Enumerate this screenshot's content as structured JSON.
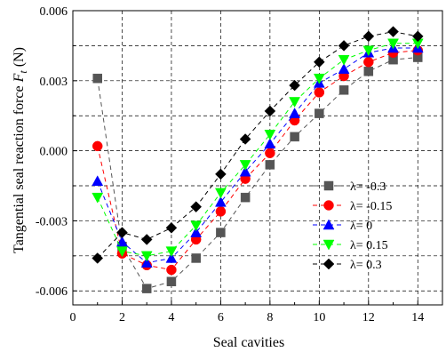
{
  "chart_data": {
    "type": "line",
    "xlabel": "Seal cavities",
    "ylabel": "Tangential seal reaction force",
    "ylabel_symbol": "F",
    "ylabel_subscript": "t",
    "ylabel_unit": " (N)",
    "xlim": [
      0,
      15
    ],
    "ylim": [
      -0.0066,
      0.006
    ],
    "x_ticks": [
      0,
      2,
      4,
      6,
      8,
      10,
      12,
      14
    ],
    "x_tick_labels": [
      "0",
      "2",
      "4",
      "6",
      "8",
      "10",
      "12",
      "14"
    ],
    "y_ticks": [
      -0.006,
      -0.003,
      0.0,
      0.003,
      0.006
    ],
    "y_tick_labels": [
      "-0.006",
      "-0.003",
      "0.000",
      "0.003",
      "0.006"
    ],
    "grid": true,
    "legend_position": "lower-right",
    "x": [
      1,
      2,
      3,
      4,
      5,
      6,
      7,
      8,
      9,
      10,
      11,
      12,
      13,
      14
    ],
    "series": [
      {
        "name": "λ= -0.3",
        "color": "#555555",
        "marker": "square",
        "values": [
          0.0031,
          -0.0041,
          -0.0059,
          -0.0056,
          -0.0046,
          -0.0035,
          -0.002,
          -0.0006,
          0.0006,
          0.0016,
          0.0026,
          0.0034,
          0.0039,
          0.004
        ]
      },
      {
        "name": "λ= -0.15",
        "color": "#ff0000",
        "marker": "circle",
        "values": [
          0.0002,
          -0.0044,
          -0.0049,
          -0.0051,
          -0.0038,
          -0.0026,
          -0.0012,
          -0.0001,
          0.0013,
          0.0025,
          0.0032,
          0.0038,
          0.0042,
          0.0043
        ]
      },
      {
        "name": "λ= 0",
        "color": "#0000ff",
        "marker": "triangle-up",
        "values": [
          -0.0013,
          -0.0039,
          -0.0048,
          -0.0046,
          -0.0035,
          -0.0022,
          -0.0009,
          0.0003,
          0.0016,
          0.0029,
          0.0035,
          0.0042,
          0.0044,
          0.0044
        ]
      },
      {
        "name": "λ= 0.15",
        "color": "#00ff00",
        "marker": "triangle-down",
        "values": [
          -0.002,
          -0.0043,
          -0.0045,
          -0.0043,
          -0.0032,
          -0.0018,
          -0.0006,
          0.0007,
          0.0021,
          0.0031,
          0.0039,
          0.0043,
          0.0046,
          0.0046
        ]
      },
      {
        "name": "λ= 0.3",
        "color": "#000000",
        "marker": "diamond",
        "values": [
          -0.0046,
          -0.0035,
          -0.0038,
          -0.0033,
          -0.0024,
          -0.001,
          0.0005,
          0.0017,
          0.0028,
          0.0038,
          0.0045,
          0.0049,
          0.0051,
          0.0049
        ]
      }
    ]
  }
}
